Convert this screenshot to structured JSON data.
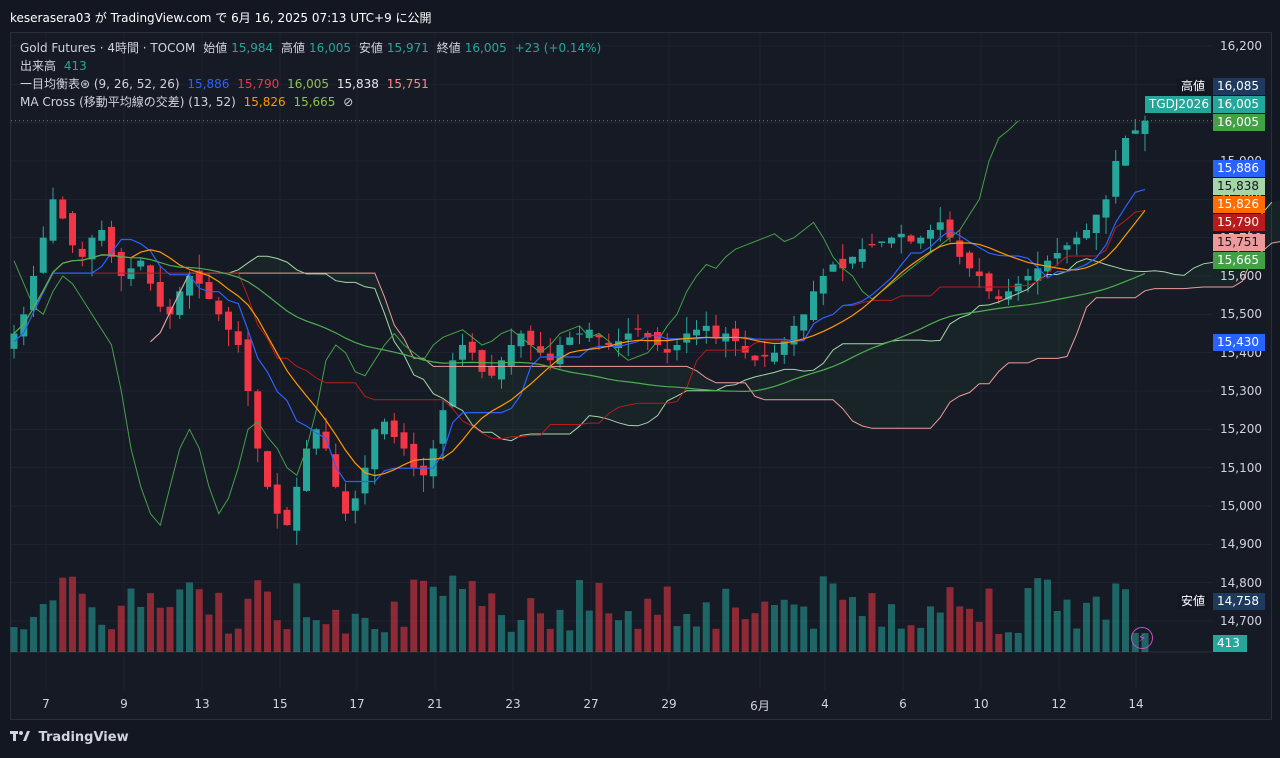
{
  "header": {
    "publish_line": "keserasera03 が TradingView.com で 6月 16, 2025 07:13 UTC+9 に公開"
  },
  "legend": {
    "symbol": "Gold Futures · 4時間 · TOCOM",
    "open_label": "始値",
    "open": "15,984",
    "high_label": "高値",
    "high": "16,005",
    "low_label": "安値",
    "low": "15,971",
    "close_label": "終値",
    "close": "16,005",
    "change": "+23 (+0.14%)",
    "volume_label": "出来高",
    "volume": "413",
    "ichimoku_label": "一目均衡表⊛ (9, 26, 52, 26)",
    "ichimoku_values": [
      "15,886",
      "15,790",
      "16,005",
      "15,838",
      "15,751"
    ],
    "ma_label": "MA Cross (移動平均線の交差) (13, 52)",
    "ma_values": [
      "15,826",
      "15,665"
    ],
    "ma_eye": "⊘"
  },
  "price_tags": {
    "high_label": "高値",
    "high_value": "16,085",
    "symbol": "TGDJ2026",
    "symbol_value": "16,005",
    "last": "16,005",
    "tenkan": "15,886",
    "spanA": "15,838",
    "ma_fast": "15,826",
    "kijun": "15,790",
    "spanB": "15,751",
    "ma_slow": "15,665",
    "low_label": "安値",
    "low_value": "14,758",
    "volume": "413",
    "kijun_level": "15,430"
  },
  "footer": {
    "brand": "TradingView"
  },
  "colors": {
    "up": "#26a69a",
    "down": "#f23645",
    "tenkan": "#2962ff",
    "kijun": "#b71c1c",
    "chikou": "#43a047",
    "spanA": "#a5d6a7",
    "spanB": "#ef9a9a",
    "ma_fast": "#ff9800",
    "ma_slow": "#4caf50"
  },
  "chart_data": {
    "type": "candlestick",
    "x_tick_labels": [
      "7",
      "9",
      "13",
      "15",
      "17",
      "21",
      "23",
      "27",
      "29",
      "6月",
      "4",
      "6",
      "10",
      "12",
      "14"
    ],
    "y_tick_labels": [
      "16,200",
      "16,100",
      "16,000",
      "15,900",
      "15,800",
      "15,700",
      "15,600",
      "15,500",
      "15,400",
      "15,300",
      "15,200",
      "15,100",
      "15,000",
      "14,900",
      "14,800",
      "14,700"
    ],
    "ylim": [
      14650,
      16250
    ],
    "grid": true,
    "close_series": [
      15450,
      15500,
      15600,
      15700,
      15800,
      15750,
      15680,
      15650,
      15700,
      15720,
      15650,
      15600,
      15620,
      15640,
      15580,
      15520,
      15500,
      15560,
      15600,
      15580,
      15540,
      15500,
      15460,
      15420,
      15300,
      15150,
      15050,
      14980,
      14950,
      15050,
      15150,
      15200,
      15150,
      15050,
      14980,
      15020,
      15100,
      15200,
      15220,
      15180,
      15150,
      15100,
      15080,
      15150,
      15250,
      15380,
      15420,
      15400,
      15350,
      15340,
      15380,
      15420,
      15450,
      15420,
      15400,
      15380,
      15420,
      15440,
      15450,
      15460,
      15440,
      15420,
      15430,
      15450,
      15460,
      15440,
      15420,
      15400,
      15420,
      15450,
      15460,
      15470,
      15440,
      15450,
      15430,
      15400,
      15380,
      15390,
      15400,
      15430,
      15470,
      15500,
      15560,
      15600,
      15630,
      15620,
      15650,
      15670,
      15680,
      15690,
      15700,
      15710,
      15690,
      15700,
      15720,
      15740,
      15700,
      15650,
      15620,
      15600,
      15560,
      15540,
      15560,
      15580,
      15600,
      15620,
      15640,
      15660,
      15680,
      15700,
      15720,
      15760,
      15800,
      15900,
      15960,
      15980,
      16005
    ]
  }
}
